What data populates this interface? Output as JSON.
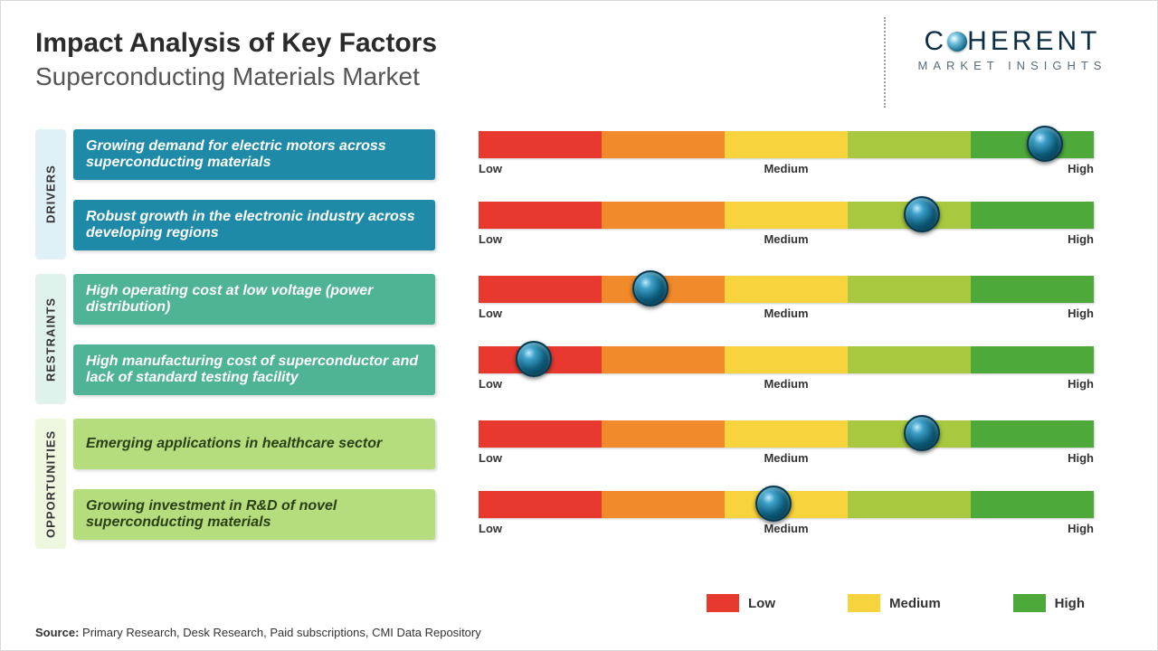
{
  "header": {
    "title": "Impact Analysis of Key Factors",
    "subtitle": "Superconducting Materials Market"
  },
  "logo": {
    "text_pre": "C",
    "text_post": "HERENT",
    "sub": "MARKET INSIGHTS",
    "text_color": "#0b2e44",
    "sub_color": "#5b6b76"
  },
  "scale_labels": {
    "low": "Low",
    "medium": "Medium",
    "high": "High"
  },
  "segment_colors": [
    "#e8392f",
    "#f08a2a",
    "#f7d33d",
    "#a8c93f",
    "#4ea93b"
  ],
  "marker_style": {
    "diameter": 40,
    "gradient": [
      "#bfe9ff",
      "#3da1c9",
      "#0d5a78",
      "#032536"
    ],
    "border": "#04384f"
  },
  "groups": [
    {
      "label": "DRIVERS",
      "vlabel_bg": "#dff1f7",
      "factor_bg": "#1e8aa8",
      "factor_text_color": "#ffffff",
      "rows": [
        {
          "text": "Growing demand for electric motors across superconducting materials",
          "marker_pct": 92
        },
        {
          "text": "Robust growth in the electronic industry across developing regions",
          "marker_pct": 72
        }
      ]
    },
    {
      "label": "RESTRAINTS",
      "vlabel_bg": "#dff3ec",
      "factor_bg": "#4fb495",
      "factor_text_color": "#ffffff",
      "rows": [
        {
          "text": "High operating cost at low voltage (power distribution)",
          "marker_pct": 28
        },
        {
          "text": "High manufacturing cost of superconductor and lack of standard testing facility",
          "marker_pct": 9
        }
      ]
    },
    {
      "label": "OPPORTUNITIES",
      "vlabel_bg": "#eef7df",
      "factor_bg": "#b6dd7d",
      "factor_text_color": "#294016",
      "rows": [
        {
          "text": "Emerging applications in healthcare sector",
          "marker_pct": 72
        },
        {
          "text": "Growing investment in R&D of novel superconducting materials",
          "marker_pct": 48
        }
      ]
    }
  ],
  "legend": {
    "items": [
      {
        "label": "Low",
        "color": "#e8392f"
      },
      {
        "label": "Medium",
        "color": "#f7d33d"
      },
      {
        "label": "High",
        "color": "#4ea93b"
      }
    ]
  },
  "source": {
    "label": "Source:",
    "text": "Primary Research, Desk Research, Paid subscriptions, CMI Data Repository"
  }
}
